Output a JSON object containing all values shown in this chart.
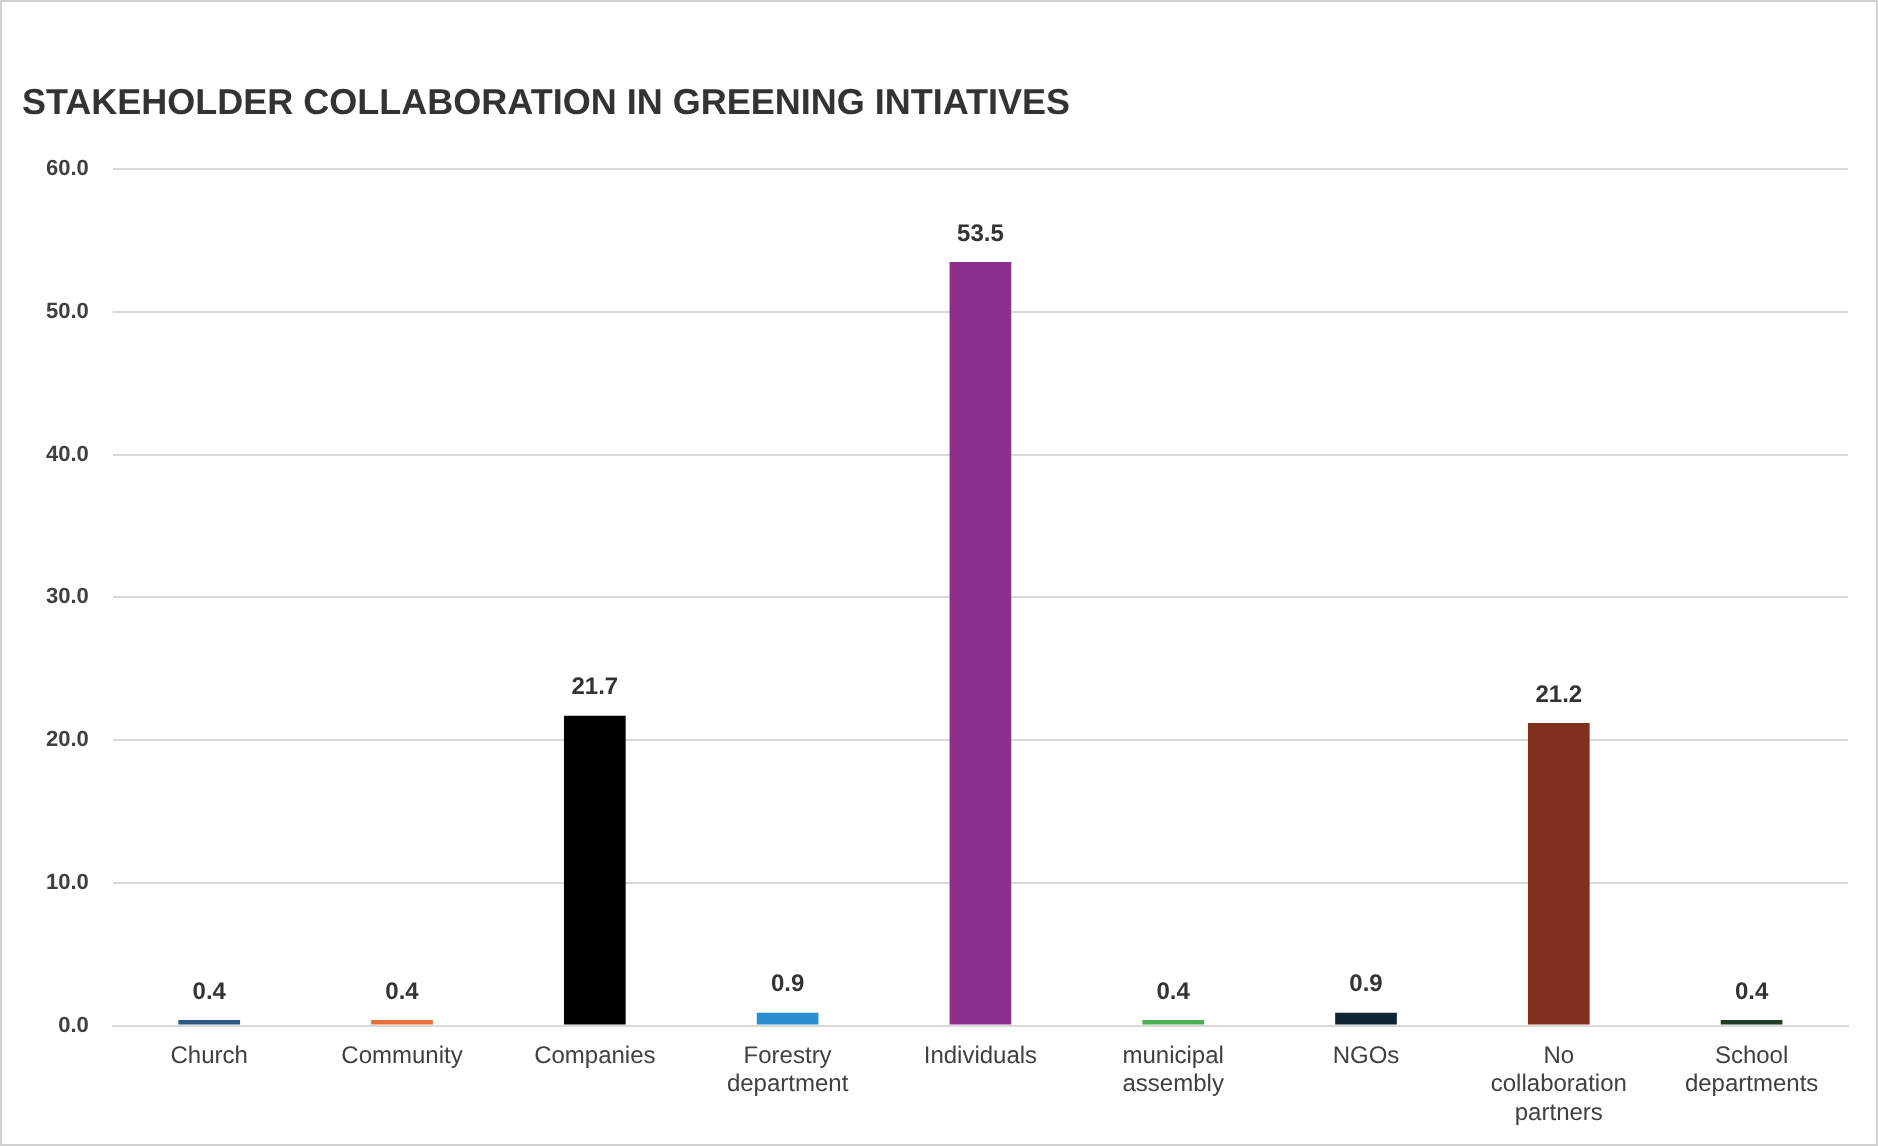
{
  "chart_data": {
    "type": "bar",
    "title": "STAKEHOLDER COLLABORATION IN GREENING INTIATIVES",
    "categories": [
      "Church",
      "Community",
      "Companies",
      "Forestry department",
      "Individuals",
      "municipal assembly",
      "NGOs",
      "No collaboration partners",
      "School departments"
    ],
    "values": [
      0.4,
      0.4,
      21.7,
      0.9,
      53.5,
      0.4,
      0.9,
      21.2,
      0.4
    ],
    "colors": [
      "#2f5a85",
      "#e8703a",
      "#000000",
      "#2a8fd0",
      "#8b2f8f",
      "#4caf50",
      "#0f2533",
      "#80301c",
      "#1f3d26"
    ],
    "ylim": [
      0,
      60
    ],
    "yticks": [
      {
        "value": 0,
        "label": "0.0"
      },
      {
        "value": 10,
        "label": "10.0"
      },
      {
        "value": 20,
        "label": "20.0"
      },
      {
        "value": 30,
        "label": "30.0"
      },
      {
        "value": 40,
        "label": "40.0"
      },
      {
        "value": 50,
        "label": "50.0"
      },
      {
        "value": 60,
        "label": "60.0"
      }
    ],
    "grid": "y",
    "data_labels": true,
    "legend": false
  }
}
